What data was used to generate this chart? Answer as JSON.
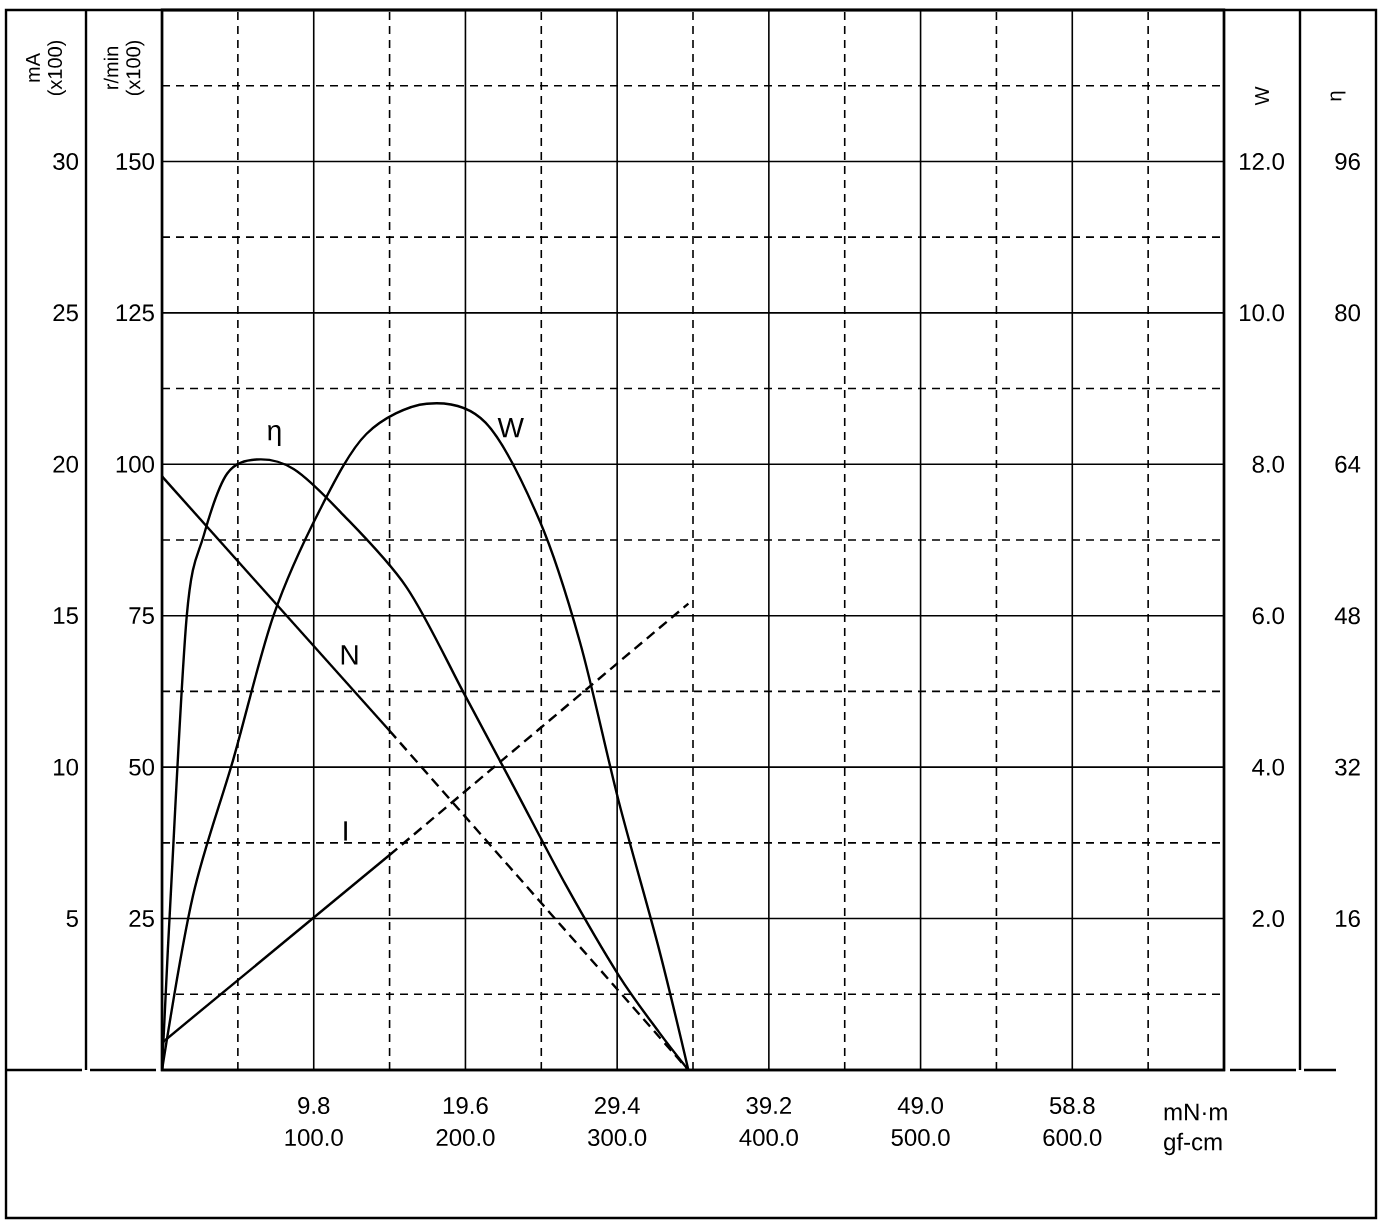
{
  "chart_data": [
    {
      "type": "line",
      "xlabel": "mN·m",
      "x2label": "gf-cm",
      "ylabel": "r/min (x100)",
      "y2label": "mA (x100)",
      "y3label": "W",
      "xlim": [
        0,
        68.6
      ],
      "xticks": [
        9.8,
        19.6,
        29.4,
        39.2,
        {
          "value": 49,
          "label": "49.0"
        },
        58.8
      ],
      "x2lim": [
        0,
        700
      ],
      "x2ticks": [
        {
          "value": 100,
          "label": "100.0"
        },
        {
          "value": 200,
          "label": "200.0"
        },
        {
          "value": 300,
          "label": "300.0"
        },
        {
          "value": 400,
          "label": "400.0"
        },
        {
          "value": 500,
          "label": "500.0"
        },
        {
          "value": 600,
          "label": "600.0"
        }
      ],
      "ylim": [
        0,
        175
      ],
      "yticks": [
        25,
        50,
        75,
        100,
        125,
        150
      ],
      "y2lim": [
        0,
        35
      ],
      "y2ticks": [
        5,
        10,
        15,
        20,
        25,
        30
      ],
      "y3lim": [
        0,
        14
      ],
      "y3ticks": [
        {
          "value": 2,
          "label": "2.0"
        },
        {
          "value": 4,
          "label": "4.0"
        },
        {
          "value": 6,
          "label": "6.0"
        },
        {
          "value": 8,
          "label": "8.0"
        },
        {
          "value": 10,
          "label": "10.0"
        },
        {
          "value": 12,
          "label": "12.0"
        }
      ],
      "grid": true,
      "marker": "none",
      "line_style": "solid",
      "series": [
        {
          "name": "N",
          "color": "#000000",
          "axis": "y",
          "x": [
            0,
            14.7
          ],
          "values": [
            98,
            56
          ]
        },
        {
          "color": "#000000",
          "axis": "y",
          "line_style": "dashed",
          "x": [
            14.7,
            34.0
          ],
          "values": [
            56,
            0
          ]
        },
        {
          "name": "I",
          "color": "#000000",
          "axis": "y2",
          "x": [
            0,
            14.7
          ],
          "values": [
            0.9,
            7.1
          ]
        },
        {
          "color": "#000000",
          "axis": "y2",
          "line_style": "dashed",
          "x": [
            14.7,
            34.0
          ],
          "values": [
            7.1,
            15.4
          ]
        },
        {
          "name": "W",
          "color": "#000000",
          "axis": "y3",
          "x": [
            0,
            2.0,
            4.6,
            7.2,
            10.2,
            13.2,
            17.1,
            20.9,
            24.4,
            27.0,
            29.5,
            32.1,
            34.0
          ],
          "values": [
            0,
            2.3,
            4.1,
            6.0,
            7.4,
            8.4,
            8.8,
            8.55,
            7.25,
            5.65,
            3.55,
            1.6,
            0
          ]
        }
      ]
    },
    {
      "type": "line",
      "ylabel": "η",
      "xlim": [
        0,
        68.6
      ],
      "ylim": [
        0,
        112
      ],
      "yticks": [
        16,
        32,
        48,
        64,
        80,
        96
      ],
      "tick_labels": "y",
      "marker": "none",
      "line_style": "solid",
      "series": [
        {
          "name": "η",
          "color": "#000000",
          "x": [
            0,
            0.5,
            1.6,
            2.7,
            4.2,
            6.1,
            8.5,
            11.5,
            15.8,
            19.6,
            22.7,
            26.1,
            29.5,
            32.1,
            34.0
          ],
          "values": [
            0,
            16.5,
            48,
            56.5,
            63,
            64.5,
            63.5,
            59,
            51,
            39.5,
            30,
            19.5,
            10,
            4,
            0
          ]
        }
      ]
    }
  ]
}
